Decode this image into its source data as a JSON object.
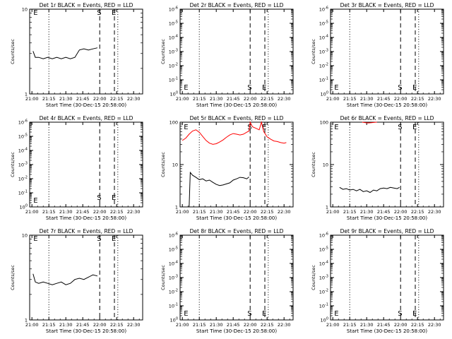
{
  "figure": {
    "colors": {
      "events": "#000000",
      "lld": "#ff0000",
      "axes": "#000000"
    }
  },
  "chart_data": [
    {
      "type": "line",
      "title": "Det 1r BLACK = Events, RED = LLD",
      "ylabel": "Counts/sec",
      "xlabel": "Start Time (30-Dec-15 20:58:00)",
      "x_ticks": [
        "21:00",
        "21:15",
        "21:30",
        "21:45",
        "22:00",
        "22:15",
        "22:30"
      ],
      "y_scale": "log",
      "y_ticks": [
        "1",
        "10"
      ],
      "ylim": [
        1,
        10
      ],
      "markers": [
        {
          "label": "E",
          "time": "21:00",
          "style": "dotted"
        },
        {
          "label": "",
          "time": "21:15",
          "style": "dotted"
        },
        {
          "label": "S",
          "time": "22:00",
          "style": "dashed"
        },
        {
          "label": "E",
          "time": "22:13",
          "style": "dashed"
        },
        {
          "label": "",
          "time": "22:16",
          "style": "dotted"
        }
      ],
      "series": [
        {
          "color": "#000000",
          "values": [
            {
              "t": "21:00",
              "v": null
            },
            {
              "t": "21:01",
              "v": 3.2
            },
            {
              "t": "21:03",
              "v": 2.7
            },
            {
              "t": "21:06",
              "v": 2.7
            },
            {
              "t": "21:10",
              "v": 2.6
            },
            {
              "t": "21:14",
              "v": 2.7
            },
            {
              "t": "21:18",
              "v": 2.6
            },
            {
              "t": "21:22",
              "v": 2.7
            },
            {
              "t": "21:26",
              "v": 2.6
            },
            {
              "t": "21:30",
              "v": 2.7
            },
            {
              "t": "21:34",
              "v": 2.6
            },
            {
              "t": "21:38",
              "v": 2.7
            },
            {
              "t": "21:42",
              "v": 3.3
            },
            {
              "t": "21:46",
              "v": 3.4
            },
            {
              "t": "21:50",
              "v": 3.3
            },
            {
              "t": "21:54",
              "v": 3.4
            },
            {
              "t": "21:58",
              "v": 3.5
            },
            {
              "t": "22:00",
              "v": null
            }
          ]
        }
      ]
    },
    {
      "type": "line",
      "title": "Det 2r BLACK = Events, RED = LLD",
      "ylabel": "Counts/sec",
      "xlabel": "Start Time (30-Dec-15 20:58:00)",
      "x_ticks": [
        "21:00",
        "21:15",
        "21:30",
        "21:45",
        "22:00",
        "22:15",
        "22:30"
      ],
      "y_scale": "log",
      "y_ticks": [
        "10^0",
        "10^-1",
        "10^-2",
        "10^-3",
        "10^-4",
        "10^-5",
        "10^-6"
      ],
      "markers": [
        {
          "label": "E",
          "time": "21:00",
          "style": "dotted"
        },
        {
          "label": "",
          "time": "21:15",
          "style": "dotted"
        },
        {
          "label": "S",
          "time": "22:00",
          "style": "dashed"
        },
        {
          "label": "E",
          "time": "22:13",
          "style": "dashed"
        },
        {
          "label": "",
          "time": "22:16",
          "style": "dotted"
        }
      ],
      "series": []
    },
    {
      "type": "line",
      "title": "Det 3r BLACK = Events, RED = LLD",
      "ylabel": "Counts/sec",
      "xlabel": "Start Time (30-Dec-15 20:58:00)",
      "x_ticks": [
        "21:00",
        "21:15",
        "21:30",
        "21:45",
        "22:00",
        "22:15",
        "22:30"
      ],
      "y_scale": "log",
      "y_ticks": [
        "10^0",
        "10^-1",
        "10^-2",
        "10^-3",
        "10^-4",
        "10^-5",
        "10^-6"
      ],
      "markers": [
        {
          "label": "E",
          "time": "21:00",
          "style": "dotted"
        },
        {
          "label": "",
          "time": "21:15",
          "style": "dotted"
        },
        {
          "label": "S",
          "time": "22:00",
          "style": "dashed"
        },
        {
          "label": "E",
          "time": "22:13",
          "style": "dashed"
        },
        {
          "label": "",
          "time": "22:16",
          "style": "dotted"
        }
      ],
      "series": []
    },
    {
      "type": "line",
      "title": "Det 4r BLACK = Events, RED = LLD",
      "ylabel": "Counts/sec",
      "xlabel": "Start Time (30-Dec-15 20:58:00)",
      "x_ticks": [
        "21:00",
        "21:15",
        "21:30",
        "21:45",
        "22:00",
        "22:15",
        "22:30"
      ],
      "y_scale": "log",
      "y_ticks": [
        "10^0",
        "10^-1",
        "10^-2",
        "10^-3",
        "10^-4",
        "10^-5",
        "10^-6"
      ],
      "markers": [
        {
          "label": "E",
          "time": "21:00",
          "style": "dotted"
        },
        {
          "label": "",
          "time": "21:15",
          "style": "dotted"
        },
        {
          "label": "S",
          "time": "22:00",
          "style": "dashed"
        },
        {
          "label": "E",
          "time": "22:13",
          "style": "dashed"
        },
        {
          "label": "",
          "time": "22:16",
          "style": "dotted"
        }
      ],
      "series": []
    },
    {
      "type": "line",
      "title": "Det 5r BLACK = Events, RED = LLD",
      "ylabel": "Counts/sec",
      "xlabel": "Start Time (30-Dec-15 20:58:00)",
      "x_ticks": [
        "21:00",
        "21:15",
        "21:30",
        "21:45",
        "22:00",
        "22:15",
        "22:30"
      ],
      "y_scale": "log",
      "y_ticks": [
        "1",
        "10",
        "100"
      ],
      "ylim": [
        1,
        100
      ],
      "markers": [
        {
          "label": "E",
          "time": "21:00",
          "style": "dotted"
        },
        {
          "label": "",
          "time": "21:15",
          "style": "dotted"
        },
        {
          "label": "S",
          "time": "22:00",
          "style": "dashed"
        },
        {
          "label": "E",
          "time": "22:13",
          "style": "dashed"
        },
        {
          "label": "",
          "time": "22:16",
          "style": "dotted"
        }
      ],
      "series": [
        {
          "color": "#ff0000",
          "values": [
            {
              "t": "21:00",
              "v": 37
            },
            {
              "t": "21:03",
              "v": 42
            },
            {
              "t": "21:06",
              "v": 52
            },
            {
              "t": "21:09",
              "v": 62
            },
            {
              "t": "21:12",
              "v": 66
            },
            {
              "t": "21:15",
              "v": 58
            },
            {
              "t": "21:18",
              "v": 46
            },
            {
              "t": "21:21",
              "v": 37
            },
            {
              "t": "21:24",
              "v": 32
            },
            {
              "t": "21:27",
              "v": 30
            },
            {
              "t": "21:30",
              "v": 31
            },
            {
              "t": "21:33",
              "v": 34
            },
            {
              "t": "21:36",
              "v": 38
            },
            {
              "t": "21:39",
              "v": 44
            },
            {
              "t": "21:42",
              "v": 50
            },
            {
              "t": "21:45",
              "v": 54
            },
            {
              "t": "21:48",
              "v": 52
            },
            {
              "t": "21:51",
              "v": 50
            },
            {
              "t": "21:54",
              "v": 52
            },
            {
              "t": "21:57",
              "v": 58
            },
            {
              "t": "21:59",
              "v": 62
            },
            {
              "t": "22:00",
              "v": 100
            },
            {
              "t": "22:02",
              "v": 78
            },
            {
              "t": "22:05",
              "v": 72
            },
            {
              "t": "22:08",
              "v": 66
            },
            {
              "t": "22:10",
              "v": 100
            },
            {
              "t": "22:12",
              "v": 60
            },
            {
              "t": "22:15",
              "v": 45
            },
            {
              "t": "22:18",
              "v": 40
            },
            {
              "t": "22:21",
              "v": 36
            },
            {
              "t": "22:24",
              "v": 35
            },
            {
              "t": "22:27",
              "v": 33
            },
            {
              "t": "22:30",
              "v": 32
            },
            {
              "t": "22:32",
              "v": 33
            }
          ]
        },
        {
          "color": "#000000",
          "values": [
            {
              "t": "21:00",
              "v": null
            },
            {
              "t": "21:06",
              "v": 1.0
            },
            {
              "t": "21:07",
              "v": 6.5
            },
            {
              "t": "21:09",
              "v": 5.6
            },
            {
              "t": "21:12",
              "v": 5.0
            },
            {
              "t": "21:15",
              "v": 4.4
            },
            {
              "t": "21:18",
              "v": 4.6
            },
            {
              "t": "21:21",
              "v": 4.1
            },
            {
              "t": "21:24",
              "v": 4.3
            },
            {
              "t": "21:27",
              "v": 3.8
            },
            {
              "t": "21:30",
              "v": 3.4
            },
            {
              "t": "21:33",
              "v": 3.2
            },
            {
              "t": "21:36",
              "v": 3.3
            },
            {
              "t": "21:39",
              "v": 3.5
            },
            {
              "t": "21:42",
              "v": 3.7
            },
            {
              "t": "21:45",
              "v": 4.3
            },
            {
              "t": "21:48",
              "v": 4.6
            },
            {
              "t": "21:51",
              "v": 5.0
            },
            {
              "t": "21:54",
              "v": 4.9
            },
            {
              "t": "21:57",
              "v": 4.6
            },
            {
              "t": "21:59",
              "v": 5.1
            },
            {
              "t": "22:00",
              "v": null
            }
          ]
        }
      ]
    },
    {
      "type": "line",
      "title": "Det 6r BLACK = Events, RED = LLD",
      "ylabel": "Counts/sec",
      "xlabel": "Start Time (30-Dec-15 20:58:00)",
      "x_ticks": [
        "21:00",
        "21:15",
        "21:30",
        "21:45",
        "22:00",
        "22:15",
        "22:30"
      ],
      "y_scale": "log",
      "y_ticks": [
        "1",
        "10",
        "100"
      ],
      "ylim": [
        1,
        100
      ],
      "markers": [
        {
          "label": "E",
          "time": "21:00",
          "style": "dotted"
        },
        {
          "label": "",
          "time": "21:15",
          "style": "dotted"
        },
        {
          "label": "S",
          "time": "22:00",
          "style": "dashed"
        },
        {
          "label": "E",
          "time": "22:13",
          "style": "dashed"
        },
        {
          "label": "",
          "time": "22:16",
          "style": "dotted"
        }
      ],
      "series": [
        {
          "color": "#ff0000",
          "values": [
            {
              "t": "21:26",
              "v": 100
            },
            {
              "t": "21:28",
              "v": 98
            },
            {
              "t": "21:31",
              "v": 96
            },
            {
              "t": "21:34",
              "v": 97
            },
            {
              "t": "21:37",
              "v": 99
            },
            {
              "t": "21:39",
              "v": 100
            }
          ]
        },
        {
          "color": "#000000",
          "values": [
            {
              "t": "21:00",
              "v": null
            },
            {
              "t": "21:06",
              "v": 2.9
            },
            {
              "t": "21:09",
              "v": 2.6
            },
            {
              "t": "21:12",
              "v": 2.7
            },
            {
              "t": "21:15",
              "v": 2.5
            },
            {
              "t": "21:18",
              "v": 2.6
            },
            {
              "t": "21:21",
              "v": 2.4
            },
            {
              "t": "21:24",
              "v": 2.6
            },
            {
              "t": "21:27",
              "v": 2.3
            },
            {
              "t": "21:30",
              "v": 2.4
            },
            {
              "t": "21:33",
              "v": 2.2
            },
            {
              "t": "21:36",
              "v": 2.5
            },
            {
              "t": "21:39",
              "v": 2.4
            },
            {
              "t": "21:42",
              "v": 2.7
            },
            {
              "t": "21:45",
              "v": 2.8
            },
            {
              "t": "21:48",
              "v": 2.7
            },
            {
              "t": "21:51",
              "v": 2.9
            },
            {
              "t": "21:54",
              "v": 2.8
            },
            {
              "t": "21:57",
              "v": 2.7
            },
            {
              "t": "21:59",
              "v": 2.9
            },
            {
              "t": "22:00",
              "v": null
            }
          ]
        }
      ]
    },
    {
      "type": "line",
      "title": "Det 7r BLACK = Events, RED = LLD",
      "ylabel": "Counts/sec",
      "xlabel": "Start Time (30-Dec-15 20:58:00)",
      "x_ticks": [
        "21:00",
        "21:15",
        "21:30",
        "21:45",
        "22:00",
        "22:15",
        "22:30"
      ],
      "y_scale": "log",
      "y_ticks": [
        "1",
        "10"
      ],
      "ylim": [
        1,
        10
      ],
      "markers": [
        {
          "label": "E",
          "time": "21:00",
          "style": "dotted"
        },
        {
          "label": "",
          "time": "21:15",
          "style": "dotted"
        },
        {
          "label": "S",
          "time": "22:00",
          "style": "dashed"
        },
        {
          "label": "E",
          "time": "22:13",
          "style": "dashed"
        },
        {
          "label": "",
          "time": "22:16",
          "style": "dotted"
        }
      ],
      "series": [
        {
          "color": "#000000",
          "values": [
            {
              "t": "21:00",
              "v": null
            },
            {
              "t": "21:01",
              "v": 3.5
            },
            {
              "t": "21:03",
              "v": 2.8
            },
            {
              "t": "21:06",
              "v": 2.7
            },
            {
              "t": "21:10",
              "v": 2.8
            },
            {
              "t": "21:14",
              "v": 2.7
            },
            {
              "t": "21:18",
              "v": 2.6
            },
            {
              "t": "21:22",
              "v": 2.7
            },
            {
              "t": "21:26",
              "v": 2.8
            },
            {
              "t": "21:30",
              "v": 2.6
            },
            {
              "t": "21:34",
              "v": 2.7
            },
            {
              "t": "21:38",
              "v": 3.0
            },
            {
              "t": "21:42",
              "v": 3.1
            },
            {
              "t": "21:46",
              "v": 3.0
            },
            {
              "t": "21:50",
              "v": 3.2
            },
            {
              "t": "21:54",
              "v": 3.4
            },
            {
              "t": "21:58",
              "v": 3.3
            },
            {
              "t": "22:00",
              "v": null
            }
          ]
        }
      ]
    },
    {
      "type": "line",
      "title": "Det 8r BLACK = Events, RED = LLD",
      "ylabel": "Counts/sec",
      "xlabel": "Start Time (30-Dec-15 20:58:00)",
      "x_ticks": [
        "21:00",
        "21:15",
        "21:30",
        "21:45",
        "22:00",
        "22:15",
        "22:30"
      ],
      "y_scale": "log",
      "y_ticks": [
        "10^0",
        "10^-1",
        "10^-2",
        "10^-3",
        "10^-4",
        "10^-5",
        "10^-6"
      ],
      "markers": [
        {
          "label": "E",
          "time": "21:00",
          "style": "dotted"
        },
        {
          "label": "",
          "time": "21:15",
          "style": "dotted"
        },
        {
          "label": "S",
          "time": "22:00",
          "style": "dashed"
        },
        {
          "label": "E",
          "time": "22:13",
          "style": "dashed"
        },
        {
          "label": "",
          "time": "22:16",
          "style": "dotted"
        }
      ],
      "series": []
    },
    {
      "type": "line",
      "title": "Det 9r BLACK = Events, RED = LLD",
      "ylabel": "Counts/sec",
      "xlabel": "Start Time (30-Dec-15 20:58:00)",
      "x_ticks": [
        "21:00",
        "21:15",
        "21:30",
        "21:45",
        "22:00",
        "22:15",
        "22:30"
      ],
      "y_scale": "log",
      "y_ticks": [
        "10^0",
        "10^-1",
        "10^-2",
        "10^-3",
        "10^-4",
        "10^-5",
        "10^-6"
      ],
      "markers": [
        {
          "label": "E",
          "time": "21:00",
          "style": "dotted"
        },
        {
          "label": "",
          "time": "21:15",
          "style": "dotted"
        },
        {
          "label": "S",
          "time": "22:00",
          "style": "dashed"
        },
        {
          "label": "E",
          "time": "22:13",
          "style": "dashed"
        },
        {
          "label": "",
          "time": "22:16",
          "style": "dotted"
        }
      ],
      "series": []
    }
  ]
}
